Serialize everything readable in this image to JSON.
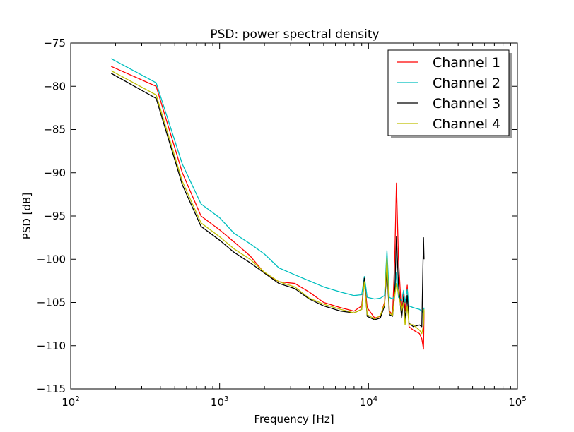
{
  "chart_data": {
    "type": "line",
    "title": "PSD: power spectral density",
    "xlabel": "Frequency [Hz]",
    "ylabel": "PSD [dB]",
    "xscale": "log",
    "xlim": [
      100,
      100000
    ],
    "ylim": [
      -115,
      -75
    ],
    "x_ticks": [
      {
        "value": 100,
        "base": "10",
        "exp": "2"
      },
      {
        "value": 1000,
        "base": "10",
        "exp": "3"
      },
      {
        "value": 10000,
        "base": "10",
        "exp": "4"
      },
      {
        "value": 100000,
        "base": "10",
        "exp": "5"
      }
    ],
    "y_ticks": [
      -75,
      -80,
      -85,
      -90,
      -95,
      -100,
      -105,
      -110,
      -115
    ],
    "y_tick_labels": [
      "−75",
      "−80",
      "−85",
      "−90",
      "−95",
      "−100",
      "−105",
      "−110",
      "−115"
    ],
    "grid": false,
    "legend_position": "top-right",
    "series": [
      {
        "name": "Channel 1",
        "color": "#ff0000",
        "points": [
          [
            187,
            -77.7
          ],
          [
            375,
            -80
          ],
          [
            562,
            -90
          ],
          [
            750,
            -95
          ],
          [
            1000,
            -96.6
          ],
          [
            1250,
            -98
          ],
          [
            1600,
            -99.6
          ],
          [
            2000,
            -101.6
          ],
          [
            2500,
            -102.6
          ],
          [
            3200,
            -102.8
          ],
          [
            4000,
            -103.8
          ],
          [
            5000,
            -105
          ],
          [
            6500,
            -105.6
          ],
          [
            8000,
            -106
          ],
          [
            9000,
            -105.4
          ],
          [
            9375,
            -102.4
          ],
          [
            9800,
            -105.6
          ],
          [
            11000,
            -106.8
          ],
          [
            12000,
            -106.6
          ],
          [
            12800,
            -105
          ],
          [
            13300,
            -100
          ],
          [
            13800,
            -106
          ],
          [
            14500,
            -106.4
          ],
          [
            15000,
            -100
          ],
          [
            15400,
            -91.2
          ],
          [
            15900,
            -100
          ],
          [
            16700,
            -106.6
          ],
          [
            17200,
            -104
          ],
          [
            17600,
            -106
          ],
          [
            18200,
            -103
          ],
          [
            18700,
            -107.8
          ],
          [
            20000,
            -108.2
          ],
          [
            22000,
            -108.6
          ],
          [
            22800,
            -109.2
          ],
          [
            23400,
            -110.4
          ],
          [
            23600,
            -106
          ]
        ]
      },
      {
        "name": "Channel 2",
        "color": "#00bfbf",
        "points": [
          [
            187,
            -76.8
          ],
          [
            375,
            -79.6
          ],
          [
            562,
            -89
          ],
          [
            750,
            -93.6
          ],
          [
            1000,
            -95.2
          ],
          [
            1250,
            -97
          ],
          [
            1600,
            -98.2
          ],
          [
            2000,
            -99.4
          ],
          [
            2500,
            -101
          ],
          [
            3200,
            -101.8
          ],
          [
            4000,
            -102.5
          ],
          [
            5000,
            -103.2
          ],
          [
            6500,
            -103.8
          ],
          [
            8000,
            -104.2
          ],
          [
            9000,
            -104.1
          ],
          [
            9375,
            -102
          ],
          [
            9800,
            -104.4
          ],
          [
            11000,
            -104.6
          ],
          [
            12000,
            -104.5
          ],
          [
            12800,
            -104.2
          ],
          [
            13300,
            -99
          ],
          [
            13800,
            -104.4
          ],
          [
            14500,
            -104.6
          ],
          [
            15000,
            -104.2
          ],
          [
            15400,
            -101.5
          ],
          [
            15900,
            -104.4
          ],
          [
            16700,
            -104.8
          ],
          [
            17200,
            -103.6
          ],
          [
            17600,
            -105
          ],
          [
            18200,
            -103.5
          ],
          [
            18700,
            -105.4
          ],
          [
            20000,
            -105.6
          ],
          [
            22000,
            -105.8
          ],
          [
            22800,
            -106
          ],
          [
            23400,
            -106.2
          ],
          [
            23600,
            -105.6
          ]
        ]
      },
      {
        "name": "Channel 3",
        "color": "#000000",
        "points": [
          [
            187,
            -78.5
          ],
          [
            375,
            -81.4
          ],
          [
            562,
            -91.4
          ],
          [
            750,
            -96.2
          ],
          [
            1000,
            -97.8
          ],
          [
            1250,
            -99.2
          ],
          [
            1600,
            -100.4
          ],
          [
            2000,
            -101.6
          ],
          [
            2500,
            -102.8
          ],
          [
            3200,
            -103.4
          ],
          [
            4000,
            -104.6
          ],
          [
            5000,
            -105.4
          ],
          [
            6500,
            -106
          ],
          [
            8000,
            -106.2
          ],
          [
            9000,
            -105.8
          ],
          [
            9375,
            -102.2
          ],
          [
            9800,
            -106.6
          ],
          [
            11000,
            -107
          ],
          [
            12000,
            -106.8
          ],
          [
            12800,
            -105.4
          ],
          [
            13300,
            -101
          ],
          [
            13800,
            -106.4
          ],
          [
            14500,
            -106.6
          ],
          [
            15000,
            -104
          ],
          [
            15400,
            -97.4
          ],
          [
            15900,
            -103
          ],
          [
            16700,
            -106.8
          ],
          [
            17200,
            -104.4
          ],
          [
            17600,
            -107
          ],
          [
            18200,
            -104.2
          ],
          [
            18700,
            -107.4
          ],
          [
            20000,
            -107.8
          ],
          [
            22000,
            -107.6
          ],
          [
            22800,
            -107.8
          ],
          [
            23400,
            -97.5
          ],
          [
            23600,
            -100
          ]
        ]
      },
      {
        "name": "Channel 4",
        "color": "#bfbf00",
        "points": [
          [
            187,
            -78.2
          ],
          [
            375,
            -81
          ],
          [
            562,
            -91
          ],
          [
            750,
            -95.8
          ],
          [
            1000,
            -97.4
          ],
          [
            1250,
            -98.8
          ],
          [
            1600,
            -100
          ],
          [
            2000,
            -101.5
          ],
          [
            2500,
            -102.6
          ],
          [
            3200,
            -103.2
          ],
          [
            4000,
            -104.5
          ],
          [
            5000,
            -105.2
          ],
          [
            6500,
            -105.8
          ],
          [
            8000,
            -106.2
          ],
          [
            9000,
            -105.8
          ],
          [
            9375,
            -102.6
          ],
          [
            9800,
            -106.4
          ],
          [
            11000,
            -106.9
          ],
          [
            12000,
            -106.5
          ],
          [
            12800,
            -105.2
          ],
          [
            13300,
            -99.8
          ],
          [
            13800,
            -106.2
          ],
          [
            14500,
            -106.5
          ],
          [
            15000,
            -104.2
          ],
          [
            15400,
            -102.8
          ],
          [
            15900,
            -104
          ],
          [
            16700,
            -106
          ],
          [
            17200,
            -105
          ],
          [
            17600,
            -107.6
          ],
          [
            18200,
            -105.4
          ],
          [
            18700,
            -107.5
          ],
          [
            20000,
            -107.6
          ],
          [
            22000,
            -108.2
          ],
          [
            22800,
            -108.6
          ],
          [
            23400,
            -107.6
          ],
          [
            23600,
            -105.8
          ]
        ]
      }
    ]
  }
}
